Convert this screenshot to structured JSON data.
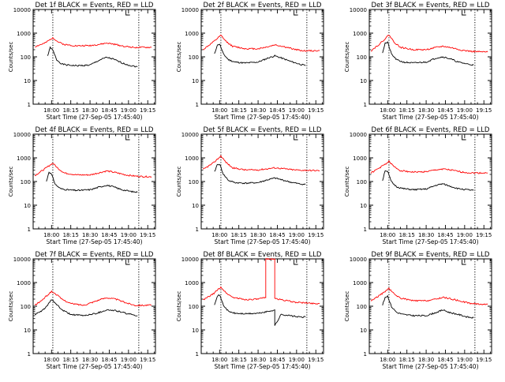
{
  "chart_data": [
    {
      "type": "line",
      "title": "Det 1f BLACK = Events, RED = LLD",
      "xlabel": "Start Time (27-Sep-05 17:45:40)",
      "ylabel": "Counts/sec",
      "ylog": true,
      "ylim": [
        1,
        10000
      ],
      "y_tick_labels": [
        "1",
        "10",
        "100",
        "1000",
        "10000"
      ],
      "x_tick_labels": [
        "18:00",
        "18:15",
        "18:30",
        "18:45",
        "19:00",
        "19:15"
      ],
      "series": [
        {
          "name": "BLACK = Events",
          "color": "#000000",
          "x": [
            "17:57",
            "17:59",
            "18:01",
            "18:04",
            "18:08",
            "18:12",
            "18:20",
            "18:30",
            "18:38",
            "18:43",
            "18:48",
            "18:55",
            "19:02",
            "19:07"
          ],
          "values": [
            110,
            250,
            190,
            75,
            50,
            45,
            42,
            45,
            75,
            95,
            80,
            55,
            42,
            38
          ]
        },
        {
          "name": "RED = LLD",
          "color": "#ff0000",
          "x": [
            "17:47",
            "17:55",
            "18:01",
            "18:05",
            "18:10",
            "18:20",
            "18:30",
            "18:38",
            "18:43",
            "18:50",
            "18:58",
            "19:05",
            "19:15",
            "19:18"
          ],
          "values": [
            270,
            380,
            650,
            430,
            330,
            290,
            300,
            340,
            380,
            330,
            270,
            250,
            250,
            250
          ]
        }
      ]
    },
    {
      "type": "line",
      "title": "Det 2f BLACK = Events, RED = LLD",
      "xlabel": "Start Time (27-Sep-05 17:45:40)",
      "ylabel": "Counts/sec",
      "ylog": true,
      "ylim": [
        1,
        10000
      ],
      "y_tick_labels": [
        "1",
        "10",
        "100",
        "1000",
        "10000"
      ],
      "x_tick_labels": [
        "18:00",
        "18:15",
        "18:30",
        "18:45",
        "19:00",
        "19:15"
      ],
      "series": [
        {
          "name": "BLACK = Events",
          "color": "#000000",
          "x": [
            "17:56",
            "17:58",
            "18:00",
            "18:03",
            "18:07",
            "18:12",
            "18:20",
            "18:30",
            "18:38",
            "18:43",
            "18:48",
            "18:55",
            "19:02",
            "19:07"
          ],
          "values": [
            130,
            300,
            350,
            130,
            75,
            60,
            55,
            60,
            90,
            110,
            90,
            65,
            50,
            42
          ]
        },
        {
          "name": "RED = LLD",
          "color": "#ff0000",
          "x": [
            "17:47",
            "17:55",
            "18:01",
            "18:05",
            "18:10",
            "18:20",
            "18:30",
            "18:38",
            "18:43",
            "18:50",
            "18:58",
            "19:05",
            "19:15",
            "19:18"
          ],
          "values": [
            200,
            420,
            800,
            450,
            280,
            220,
            220,
            270,
            320,
            270,
            210,
            180,
            180,
            180
          ]
        }
      ]
    },
    {
      "type": "line",
      "title": "Det 3f BLACK = Events, RED = LLD",
      "xlabel": "Start Time (27-Sep-05 17:45:40)",
      "ylabel": "Counts/sec",
      "ylog": true,
      "ylim": [
        1,
        10000
      ],
      "y_tick_labels": [
        "1",
        "10",
        "100",
        "1000",
        "10000"
      ],
      "x_tick_labels": [
        "18:00",
        "18:15",
        "18:30",
        "18:45",
        "19:00",
        "19:15"
      ],
      "series": [
        {
          "name": "BLACK = Events",
          "color": "#000000",
          "x": [
            "17:56",
            "17:58",
            "18:00",
            "18:03",
            "18:07",
            "18:12",
            "18:20",
            "18:30",
            "18:38",
            "18:43",
            "18:48",
            "18:55",
            "19:02",
            "19:07"
          ],
          "values": [
            150,
            380,
            400,
            130,
            75,
            60,
            55,
            60,
            90,
            100,
            85,
            60,
            50,
            45
          ]
        },
        {
          "name": "RED = LLD",
          "color": "#ff0000",
          "x": [
            "17:47",
            "17:55",
            "18:01",
            "18:05",
            "18:10",
            "18:20",
            "18:30",
            "18:38",
            "18:43",
            "18:50",
            "18:58",
            "19:05",
            "19:15",
            "19:18"
          ],
          "values": [
            180,
            400,
            850,
            420,
            250,
            200,
            200,
            250,
            280,
            240,
            190,
            170,
            160,
            160
          ]
        }
      ]
    },
    {
      "type": "line",
      "title": "Det 4f BLACK = Events, RED = LLD",
      "xlabel": "Start Time (27-Sep-05 17:45:40)",
      "ylabel": "Counts/sec",
      "ylog": true,
      "ylim": [
        1,
        10000
      ],
      "y_tick_labels": [
        "1",
        "10",
        "100",
        "1000",
        "10000"
      ],
      "x_tick_labels": [
        "18:00",
        "18:15",
        "18:30",
        "18:45",
        "19:00",
        "19:15"
      ],
      "series": [
        {
          "name": "BLACK = Events",
          "color": "#000000",
          "x": [
            "17:56",
            "17:58",
            "18:00",
            "18:03",
            "18:07",
            "18:12",
            "18:20",
            "18:30",
            "18:38",
            "18:43",
            "18:48",
            "18:55",
            "19:02",
            "19:07"
          ],
          "values": [
            100,
            260,
            200,
            75,
            50,
            45,
            42,
            45,
            60,
            70,
            60,
            45,
            38,
            35
          ]
        },
        {
          "name": "RED = LLD",
          "color": "#ff0000",
          "x": [
            "17:47",
            "17:55",
            "18:01",
            "18:05",
            "18:10",
            "18:20",
            "18:30",
            "18:38",
            "18:43",
            "18:50",
            "18:58",
            "19:05",
            "19:15",
            "19:18"
          ],
          "values": [
            180,
            350,
            600,
            360,
            230,
            190,
            190,
            240,
            280,
            240,
            190,
            170,
            160,
            160
          ]
        }
      ]
    },
    {
      "type": "line",
      "title": "Det 5f BLACK = Events, RED = LLD",
      "xlabel": "Start Time (27-Sep-05 17:45:40)",
      "ylabel": "Counts/sec",
      "ylog": true,
      "ylim": [
        1,
        10000
      ],
      "y_tick_labels": [
        "1",
        "10",
        "100",
        "1000",
        "10000"
      ],
      "x_tick_labels": [
        "18:00",
        "18:15",
        "18:30",
        "18:45",
        "19:00",
        "19:15"
      ],
      "series": [
        {
          "name": "BLACK = Events",
          "color": "#000000",
          "x": [
            "17:56",
            "17:58",
            "18:00",
            "18:03",
            "18:07",
            "18:12",
            "18:20",
            "18:30",
            "18:38",
            "18:43",
            "18:48",
            "18:55",
            "19:02",
            "19:07"
          ],
          "values": [
            250,
            500,
            550,
            200,
            110,
            90,
            85,
            90,
            120,
            140,
            120,
            95,
            80,
            75
          ]
        },
        {
          "name": "RED = LLD",
          "color": "#ff0000",
          "x": [
            "17:47",
            "17:55",
            "18:01",
            "18:05",
            "18:10",
            "18:20",
            "18:30",
            "18:38",
            "18:43",
            "18:50",
            "18:58",
            "19:05",
            "19:15",
            "19:18"
          ],
          "values": [
            320,
            600,
            1200,
            650,
            380,
            310,
            310,
            350,
            380,
            350,
            310,
            300,
            290,
            290
          ]
        }
      ]
    },
    {
      "type": "line",
      "title": "Det 6f BLACK = Events, RED = LLD",
      "xlabel": "Start Time (27-Sep-05 17:45:40)",
      "ylabel": "Counts/sec",
      "ylog": true,
      "ylim": [
        1,
        10000
      ],
      "y_tick_labels": [
        "1",
        "10",
        "100",
        "1000",
        "10000"
      ],
      "x_tick_labels": [
        "18:00",
        "18:15",
        "18:30",
        "18:45",
        "19:00",
        "19:15"
      ],
      "series": [
        {
          "name": "BLACK = Events",
          "color": "#000000",
          "x": [
            "17:56",
            "17:58",
            "18:00",
            "18:03",
            "18:07",
            "18:12",
            "18:20",
            "18:30",
            "18:38",
            "18:43",
            "18:48",
            "18:55",
            "19:02",
            "19:07"
          ],
          "values": [
            110,
            300,
            260,
            95,
            60,
            50,
            45,
            48,
            70,
            80,
            65,
            50,
            45,
            42
          ]
        },
        {
          "name": "RED = LLD",
          "color": "#ff0000",
          "x": [
            "17:47",
            "17:55",
            "18:01",
            "18:05",
            "18:10",
            "18:20",
            "18:30",
            "18:38",
            "18:43",
            "18:50",
            "18:58",
            "19:05",
            "19:15",
            "19:18"
          ],
          "values": [
            230,
            420,
            700,
            420,
            290,
            250,
            260,
            310,
            340,
            300,
            250,
            230,
            230,
            230
          ]
        }
      ]
    },
    {
      "type": "line",
      "title": "Det 7f BLACK = Events, RED = LLD",
      "xlabel": "Start Time (27-Sep-05 17:45:40)",
      "ylabel": "Counts/sec",
      "ylog": true,
      "ylim": [
        1,
        10000
      ],
      "y_tick_labels": [
        "1",
        "10",
        "100",
        "1000",
        "10000"
      ],
      "x_tick_labels": [
        "18:00",
        "18:15",
        "18:30",
        "18:45",
        "19:00",
        "19:15"
      ],
      "series": [
        {
          "name": "BLACK = Events",
          "color": "#000000",
          "x": [
            "17:47",
            "17:52",
            "17:57",
            "18:00",
            "18:04",
            "18:08",
            "18:15",
            "18:25",
            "18:35",
            "18:43",
            "18:50",
            "18:58",
            "19:05",
            "19:07"
          ],
          "values": [
            45,
            60,
            110,
            190,
            120,
            70,
            45,
            40,
            50,
            70,
            65,
            50,
            42,
            40
          ]
        },
        {
          "name": "RED = LLD",
          "color": "#ff0000",
          "x": [
            "17:47",
            "17:52",
            "17:57",
            "18:00",
            "18:04",
            "18:08",
            "18:15",
            "18:25",
            "18:35",
            "18:43",
            "18:50",
            "18:58",
            "19:05",
            "19:15",
            "19:18"
          ],
          "values": [
            110,
            170,
            300,
            420,
            310,
            200,
            130,
            110,
            170,
            230,
            200,
            140,
            110,
            110,
            110
          ]
        }
      ]
    },
    {
      "type": "line",
      "title": "Det 8f BLACK = Events, RED = LLD",
      "xlabel": "Start Time (27-Sep-05 17:45:40)",
      "ylabel": "Counts/sec",
      "ylog": true,
      "ylim": [
        1,
        10000
      ],
      "y_tick_labels": [
        "1",
        "10",
        "100",
        "1000",
        "10000"
      ],
      "x_tick_labels": [
        "18:00",
        "18:15",
        "18:30",
        "18:45",
        "19:00",
        "19:15"
      ],
      "series": [
        {
          "name": "BLACK = Events",
          "color": "#000000",
          "x": [
            "17:56",
            "17:58",
            "18:00",
            "18:03",
            "18:07",
            "18:12",
            "18:20",
            "18:30",
            "18:38",
            "18:40",
            "18:43",
            "18:43",
            "18:48",
            "18:55",
            "19:02",
            "19:07"
          ],
          "values": [
            120,
            260,
            300,
            110,
            60,
            50,
            48,
            50,
            60,
            65,
            70,
            15,
            45,
            40,
            35,
            35
          ]
        },
        {
          "name": "RED = LLD",
          "color": "#ff0000",
          "x": [
            "17:47",
            "17:55",
            "18:01",
            "18:05",
            "18:10",
            "18:20",
            "18:30",
            "18:36",
            "18:36",
            "18:43",
            "18:43",
            "18:48",
            "18:58",
            "19:05",
            "19:15",
            "19:18"
          ],
          "values": [
            180,
            330,
            650,
            370,
            240,
            190,
            200,
            230,
            10000,
            10000,
            210,
            190,
            150,
            140,
            130,
            130
          ]
        }
      ]
    },
    {
      "type": "line",
      "title": "Det 9f BLACK = Events, RED = LLD",
      "xlabel": "Start Time (27-Sep-05 17:45:40)",
      "ylabel": "Counts/sec",
      "ylog": true,
      "ylim": [
        1,
        10000
      ],
      "y_tick_labels": [
        "1",
        "10",
        "100",
        "1000",
        "10000"
      ],
      "x_tick_labels": [
        "18:00",
        "18:15",
        "18:30",
        "18:45",
        "19:00",
        "19:15"
      ],
      "series": [
        {
          "name": "BLACK = Events",
          "color": "#000000",
          "x": [
            "17:56",
            "17:58",
            "18:00",
            "18:03",
            "18:07",
            "18:12",
            "18:20",
            "18:30",
            "18:38",
            "18:43",
            "18:48",
            "18:55",
            "19:02",
            "19:07"
          ],
          "values": [
            110,
            240,
            270,
            95,
            55,
            45,
            40,
            40,
            55,
            70,
            55,
            45,
            35,
            32
          ]
        },
        {
          "name": "RED = LLD",
          "color": "#ff0000",
          "x": [
            "17:47",
            "17:55",
            "18:01",
            "18:05",
            "18:10",
            "18:20",
            "18:30",
            "18:38",
            "18:43",
            "18:50",
            "18:58",
            "19:05",
            "19:15",
            "19:18"
          ],
          "values": [
            170,
            320,
            560,
            330,
            220,
            170,
            170,
            200,
            240,
            200,
            160,
            130,
            120,
            120
          ]
        }
      ]
    }
  ]
}
